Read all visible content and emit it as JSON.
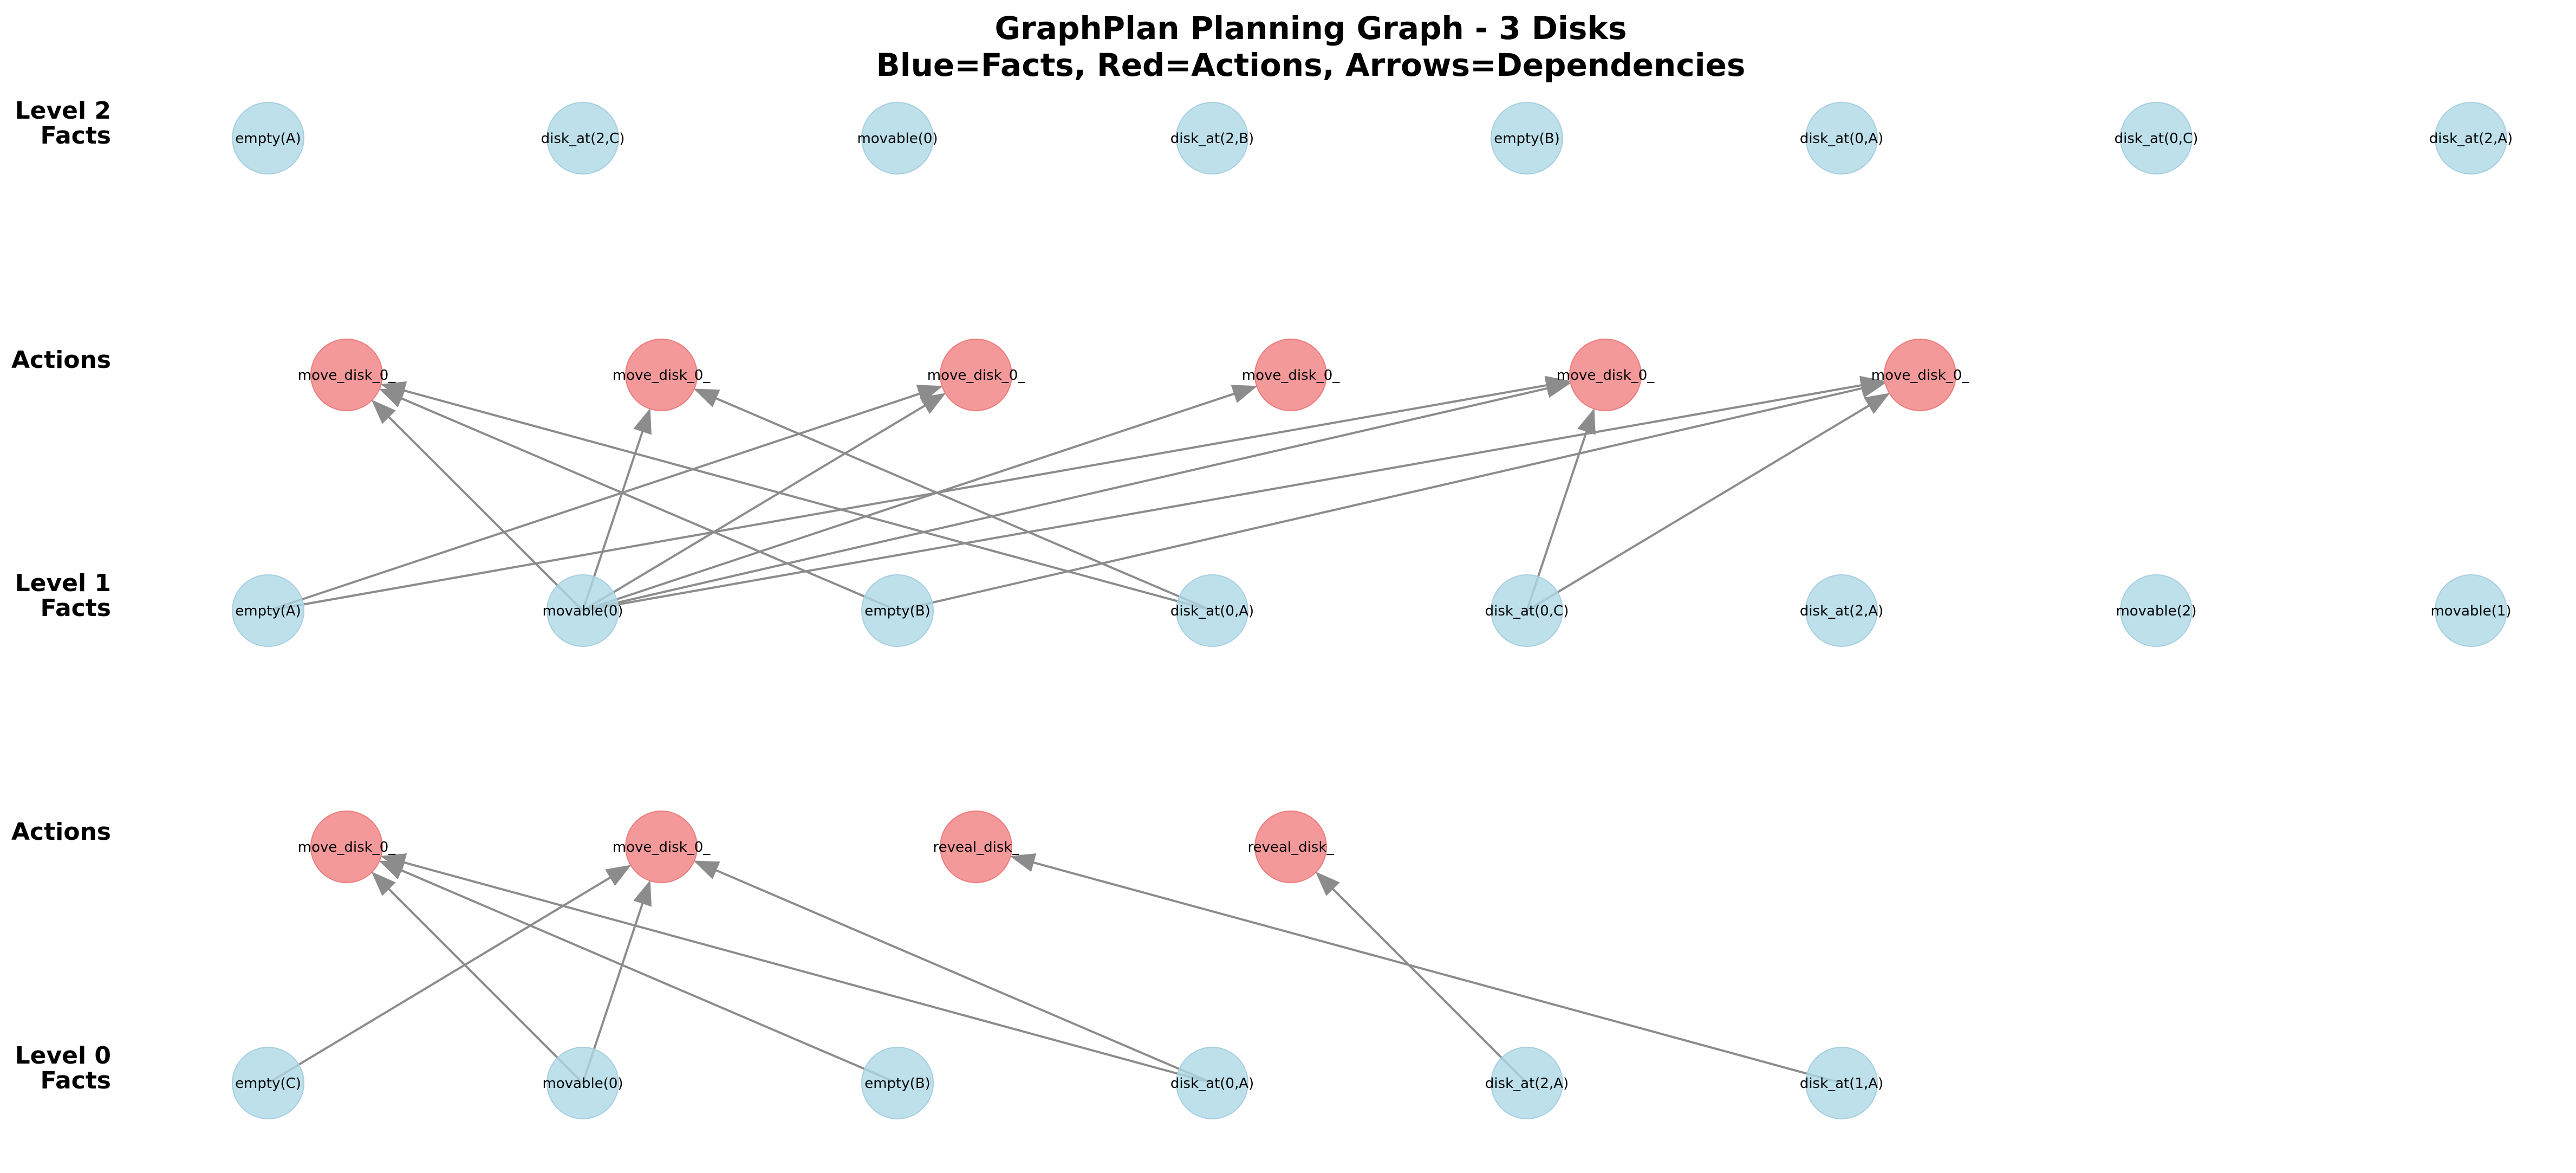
{
  "title": {
    "line1": "GraphPlan Planning Graph - 3 Disks",
    "line2": "Blue=Facts, Red=Actions, Arrows=Dependencies"
  },
  "colors": {
    "fact_fill": "#add8e6",
    "action_fill": "#f08080",
    "edge": "#8c8c8c"
  },
  "level_labels": [
    {
      "id": "level2",
      "line1": "Level 2",
      "line2": "Facts"
    },
    {
      "id": "actions1",
      "line1": "Actions",
      "line2": ""
    },
    {
      "id": "level1",
      "line1": "Level 1",
      "line2": "Facts"
    },
    {
      "id": "actions0",
      "line1": "Actions",
      "line2": ""
    },
    {
      "id": "level0",
      "line1": "Level 0",
      "line2": "Facts"
    }
  ],
  "rows": {
    "level2": {
      "kind": "fact",
      "nodes": [
        "empty(A)",
        "disk_at(2,C)",
        "movable(0)",
        "disk_at(2,B)",
        "empty(B)",
        "disk_at(0,A)",
        "disk_at(0,C)",
        "disk_at(2,A)"
      ]
    },
    "actions1": {
      "kind": "action",
      "nodes": [
        "move_disk_0_",
        "move_disk_0_",
        "move_disk_0_",
        "move_disk_0_",
        "move_disk_0_",
        "move_disk_0_"
      ]
    },
    "level1": {
      "kind": "fact",
      "nodes": [
        "empty(A)",
        "movable(0)",
        "empty(B)",
        "disk_at(0,A)",
        "disk_at(0,C)",
        "disk_at(2,A)",
        "movable(2)",
        "movable(1)"
      ]
    },
    "actions0": {
      "kind": "action",
      "nodes": [
        "move_disk_0_",
        "move_disk_0_",
        "reveal_disk_",
        "reveal_disk_"
      ]
    },
    "level0": {
      "kind": "fact",
      "nodes": [
        "empty(C)",
        "movable(0)",
        "empty(B)",
        "disk_at(0,A)",
        "disk_at(2,A)",
        "disk_at(1,A)"
      ]
    }
  },
  "edges": [
    {
      "from": [
        "level0",
        0
      ],
      "to": [
        "actions0",
        1
      ]
    },
    {
      "from": [
        "level0",
        1
      ],
      "to": [
        "actions0",
        0
      ]
    },
    {
      "from": [
        "level0",
        1
      ],
      "to": [
        "actions0",
        1
      ]
    },
    {
      "from": [
        "level0",
        2
      ],
      "to": [
        "actions0",
        0
      ]
    },
    {
      "from": [
        "level0",
        3
      ],
      "to": [
        "actions0",
        0
      ]
    },
    {
      "from": [
        "level0",
        3
      ],
      "to": [
        "actions0",
        1
      ]
    },
    {
      "from": [
        "level0",
        4
      ],
      "to": [
        "actions0",
        3
      ]
    },
    {
      "from": [
        "level0",
        5
      ],
      "to": [
        "actions0",
        2
      ]
    },
    {
      "from": [
        "level1",
        0
      ],
      "to": [
        "actions1",
        2
      ]
    },
    {
      "from": [
        "level1",
        0
      ],
      "to": [
        "actions1",
        4
      ]
    },
    {
      "from": [
        "level1",
        1
      ],
      "to": [
        "actions1",
        0
      ]
    },
    {
      "from": [
        "level1",
        1
      ],
      "to": [
        "actions1",
        1
      ]
    },
    {
      "from": [
        "level1",
        1
      ],
      "to": [
        "actions1",
        2
      ]
    },
    {
      "from": [
        "level1",
        1
      ],
      "to": [
        "actions1",
        3
      ]
    },
    {
      "from": [
        "level1",
        1
      ],
      "to": [
        "actions1",
        4
      ]
    },
    {
      "from": [
        "level1",
        1
      ],
      "to": [
        "actions1",
        5
      ]
    },
    {
      "from": [
        "level1",
        2
      ],
      "to": [
        "actions1",
        0
      ]
    },
    {
      "from": [
        "level1",
        2
      ],
      "to": [
        "actions1",
        5
      ]
    },
    {
      "from": [
        "level1",
        3
      ],
      "to": [
        "actions1",
        0
      ]
    },
    {
      "from": [
        "level1",
        3
      ],
      "to": [
        "actions1",
        1
      ]
    },
    {
      "from": [
        "level1",
        4
      ],
      "to": [
        "actions1",
        4
      ]
    },
    {
      "from": [
        "level1",
        4
      ],
      "to": [
        "actions1",
        5
      ]
    }
  ]
}
